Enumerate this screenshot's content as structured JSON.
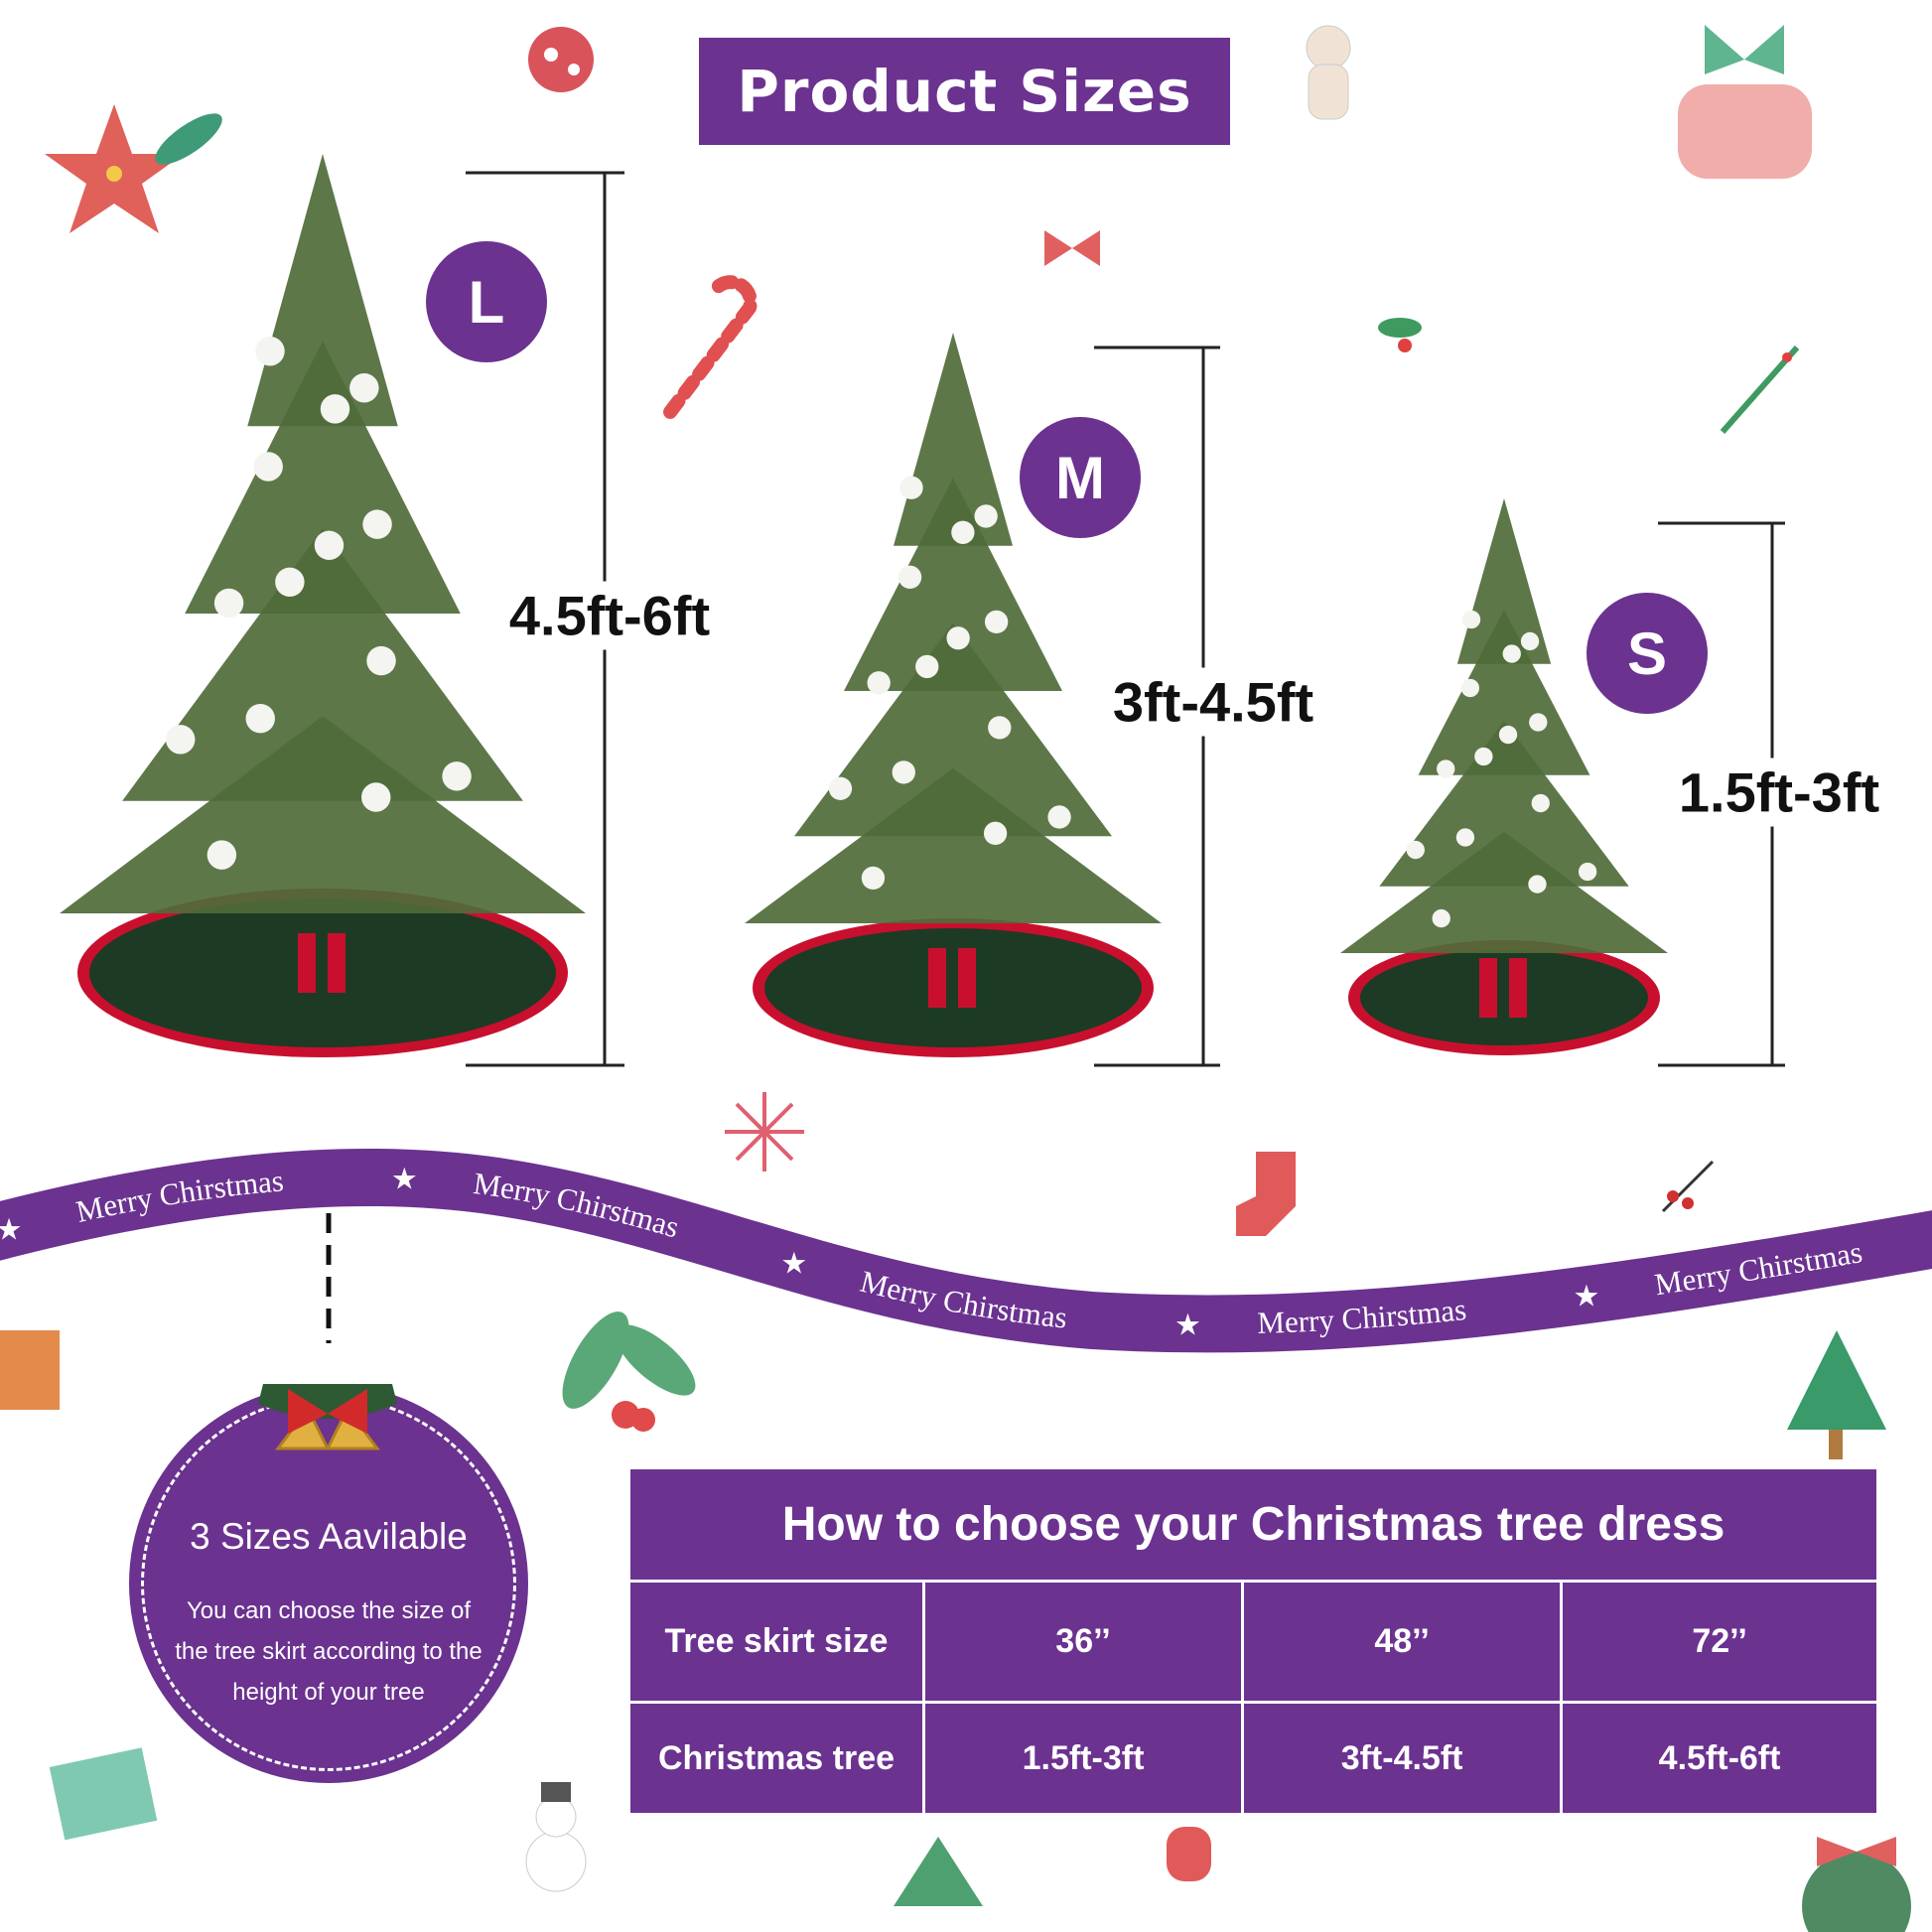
{
  "header": {
    "title": "Product Sizes"
  },
  "colors": {
    "brand_purple": "#6b3290",
    "tree_green": "#4f6b3a",
    "skirt_red": "#c8102e",
    "skirt_green": "#1d3a24"
  },
  "sizes": [
    {
      "badge": "L",
      "height_label": "4.5ft-6ft"
    },
    {
      "badge": "M",
      "height_label": "3ft-4.5ft"
    },
    {
      "badge": "S",
      "height_label": "1.5ft-3ft"
    }
  ],
  "ribbon": {
    "text": "Merry Chirstmas",
    "icon": "star-icon"
  },
  "info_circle": {
    "title": "3 Sizes Aavilable",
    "text": "You can choose the size of the tree skirt according to the height of your tree",
    "icon": "bells-bow-icon"
  },
  "size_table": {
    "title": "How to choose your Christmas tree dress",
    "rows": [
      {
        "label": "Tree skirt size",
        "values": [
          "36’’",
          "48’’",
          "72’’"
        ]
      },
      {
        "label": "Christmas tree",
        "values": [
          "1.5ft-3ft",
          "3ft-4.5ft",
          "4.5ft-6ft"
        ]
      }
    ]
  }
}
